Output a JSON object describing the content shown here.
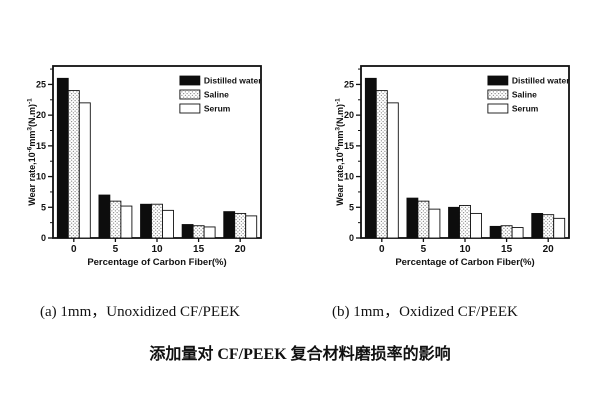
{
  "figure": {
    "caption_a": "(a) 1mm，Unoxidized CF/PEEK",
    "caption_b": "(b) 1mm，Oxidized CF/PEEK",
    "title": "添加量对 CF/PEEK 复合材料磨损率的影响"
  },
  "colors": {
    "bar_solid": "#0d0d0d",
    "bar_open": "#ffffff",
    "stipple_dot": "#8a8a8a",
    "axis": "#111111",
    "background": "#ffffff"
  },
  "chart_data": [
    {
      "type": "bar",
      "panel": "a",
      "xlabel": "Percentage of Carbon Fiber(%)",
      "ylabel_plain": "Wear rate,10^-6 mm^3 (N.m)^-1",
      "ylabel_parts": [
        [
          "Wear rate,10",
          0
        ],
        [
          "-6",
          1
        ],
        [
          "mm",
          0
        ],
        [
          "3",
          1
        ],
        [
          "(N.m)",
          0
        ],
        [
          "-1",
          1
        ]
      ],
      "ylim": [
        0,
        28
      ],
      "yticks": [
        0,
        5,
        10,
        15,
        20,
        25
      ],
      "y_minor_step": 2.5,
      "grid": false,
      "legend_position": "top-right",
      "categories": [
        "0",
        "5",
        "10",
        "15",
        "20"
      ],
      "series": [
        {
          "name": "Distilled water",
          "style": "solid",
          "values": [
            26,
            7.0,
            5.5,
            2.2,
            4.3
          ]
        },
        {
          "name": "Saline",
          "style": "stipple",
          "values": [
            24,
            6.0,
            5.5,
            2.0,
            4.0
          ]
        },
        {
          "name": "Serum",
          "style": "open",
          "values": [
            22,
            5.2,
            4.5,
            1.8,
            3.6
          ]
        }
      ]
    },
    {
      "type": "bar",
      "panel": "b",
      "xlabel": "Percentage of Carbon Fiber(%)",
      "ylabel_plain": "Wear rate,10^-6 mm^3 (N.m)^-1",
      "ylabel_parts": [
        [
          "Wear rate,10",
          0
        ],
        [
          "-6",
          1
        ],
        [
          "mm",
          0
        ],
        [
          "3",
          1
        ],
        [
          "(N.m)",
          0
        ],
        [
          "-1",
          1
        ]
      ],
      "ylim": [
        0,
        28
      ],
      "yticks": [
        0,
        5,
        10,
        15,
        20,
        25
      ],
      "y_minor_step": 2.5,
      "grid": false,
      "legend_position": "top-right",
      "categories": [
        "0",
        "5",
        "10",
        "15",
        "20"
      ],
      "series": [
        {
          "name": "Distilled water",
          "style": "solid",
          "values": [
            26,
            6.5,
            5.0,
            1.9,
            4.0
          ]
        },
        {
          "name": "Saline",
          "style": "stipple",
          "values": [
            24,
            6.0,
            5.3,
            2.0,
            3.8
          ]
        },
        {
          "name": "Serum",
          "style": "open",
          "values": [
            22,
            4.7,
            4.0,
            1.7,
            3.2
          ]
        }
      ]
    }
  ]
}
